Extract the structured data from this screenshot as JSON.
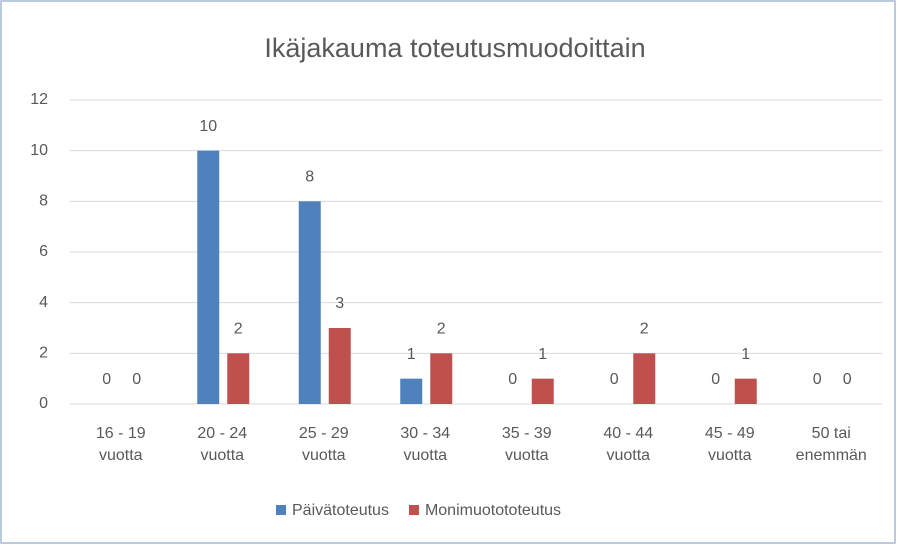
{
  "chart_data": {
    "type": "bar",
    "title": "Ikäjakauma toteutusmuodoittain",
    "categories": [
      "16 - 19 vuotta",
      "20 - 24 vuotta",
      "25 - 29 vuotta",
      "30 - 34 vuotta",
      "35 - 39 vuotta",
      "40 - 44 vuotta",
      "45 - 49 vuotta",
      "50 tai enemmän"
    ],
    "series": [
      {
        "name": "Päivätoteutus",
        "color": "#4f81bd",
        "values": [
          0,
          10,
          8,
          1,
          0,
          0,
          0,
          0
        ]
      },
      {
        "name": "Monimuotototeutus",
        "color": "#c0504d",
        "values": [
          0,
          2,
          3,
          2,
          1,
          2,
          1,
          0
        ]
      }
    ],
    "ylim": [
      0,
      12
    ],
    "yticks": [
      0,
      2,
      4,
      6,
      8,
      10,
      12
    ],
    "grid": true,
    "legend": "bottom"
  }
}
